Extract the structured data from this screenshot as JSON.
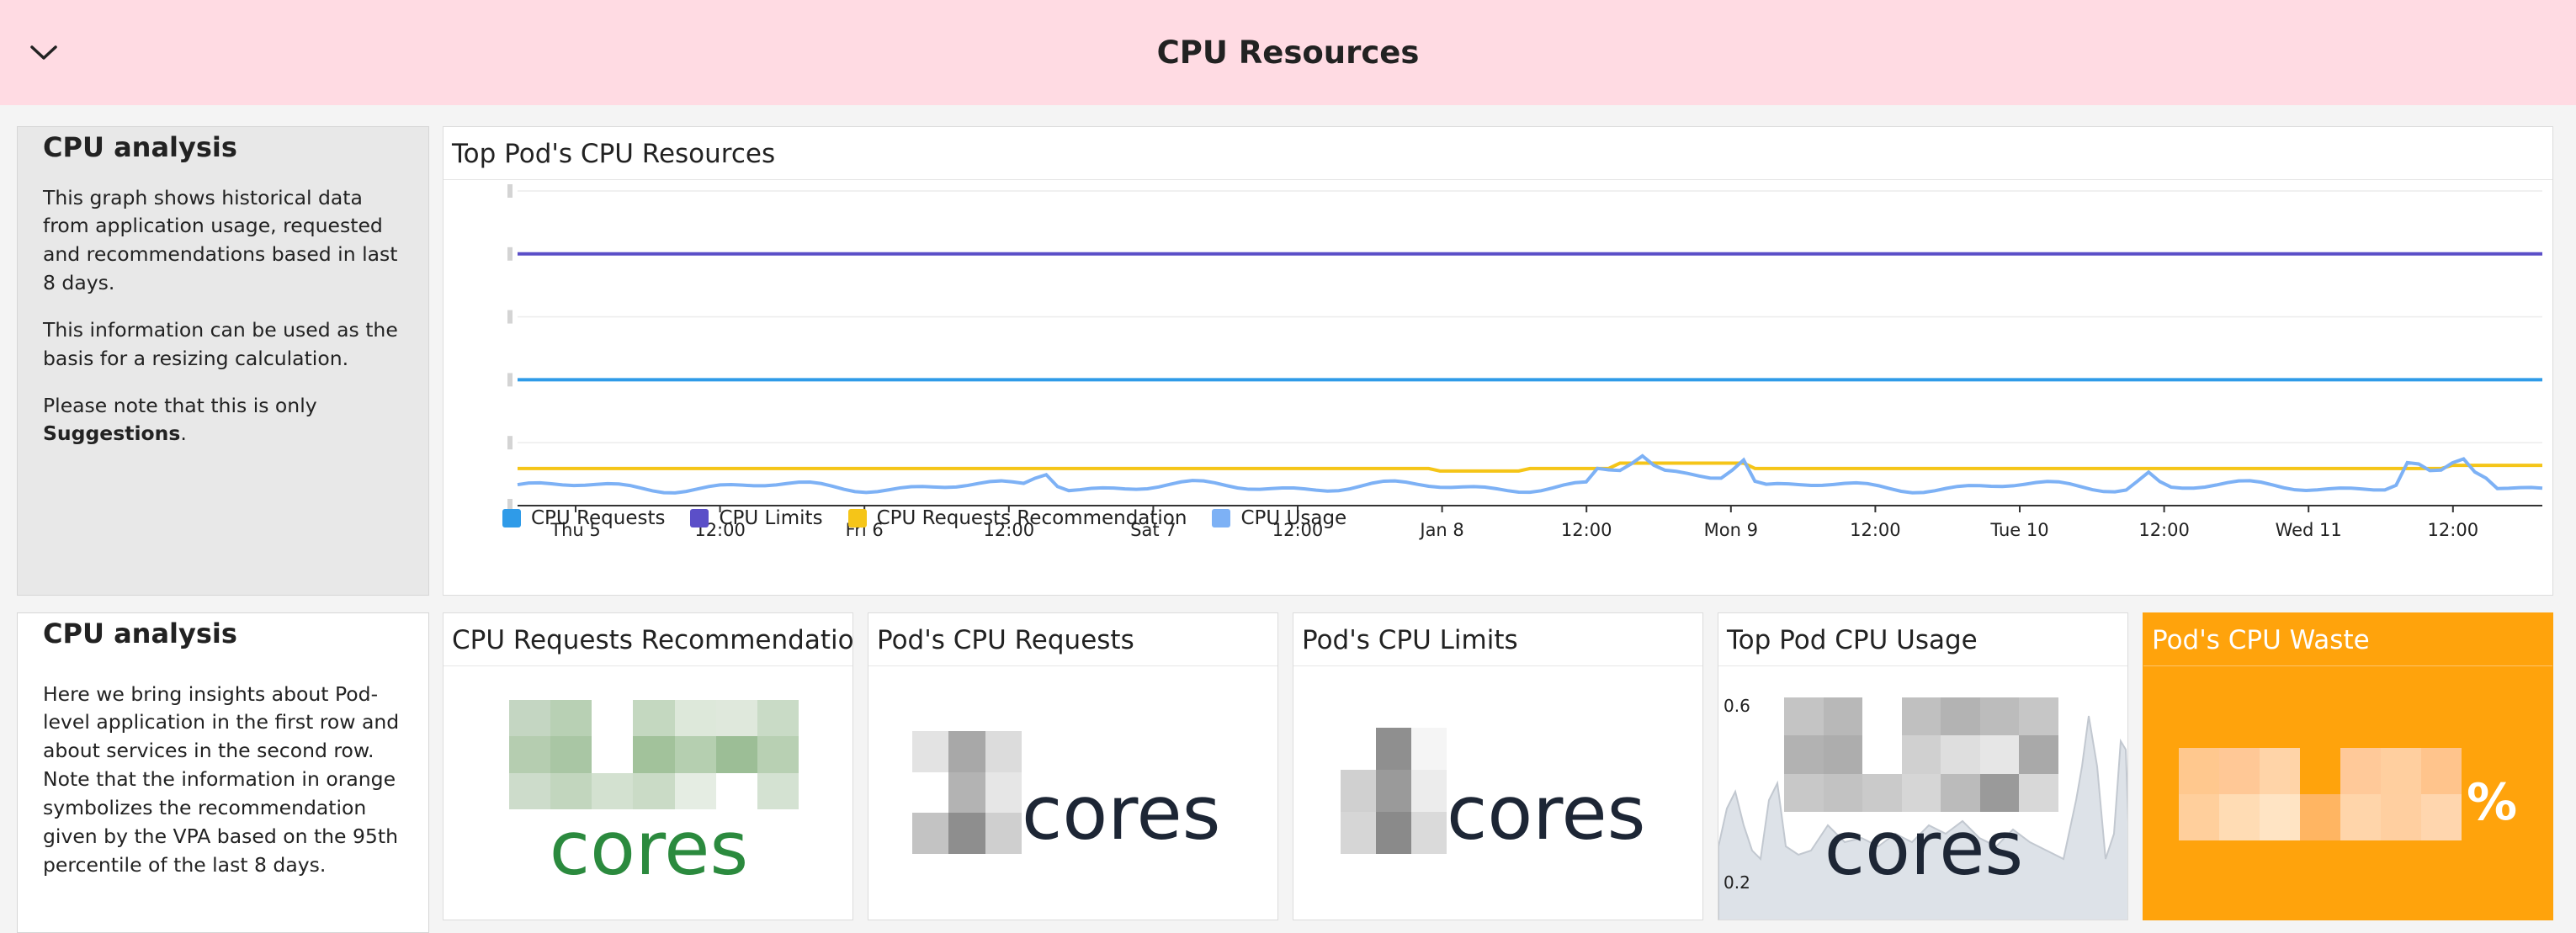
{
  "group": {
    "title": "CPU Resources",
    "toggle_icon": "chevron-down-icon"
  },
  "note_top": {
    "heading": "CPU analysis",
    "p1": "This graph shows historical data from application usage, requested and recommendations based in last 8 days.",
    "p2": "This information can be used as the basis for a resizing calculation.",
    "p3_prefix": "Please note that this is only ",
    "p3_bold": "Suggestions",
    "p3_suffix": "."
  },
  "note_bottom": {
    "heading": "CPU analysis",
    "p1": "Here we bring insights about Pod-level application in the first row and about services in the second row. Note that the information in orange symbolizes the recommendation given by the VPA based on the 95th percentile of the last 8 days."
  },
  "timeseries": {
    "title": "Top Pod's CPU Resources",
    "legend": [
      "CPU Requests",
      "CPU Limits",
      "CPU Requests Recommendation",
      "CPU Usage"
    ]
  },
  "chart_data": {
    "type": "line",
    "x_ticks": [
      "Thu 5",
      "12:00",
      "Fri 6",
      "12:00",
      "Sat 7",
      "12:00",
      "Jan 8",
      "12:00",
      "Mon 9",
      "12:00",
      "Tue 10",
      "12:00",
      "Wed 11",
      "12:00"
    ],
    "y_tick_count": 6,
    "series": [
      {
        "name": "CPU Limits",
        "color": "#5b4fc8",
        "level": 0.8
      },
      {
        "name": "CPU Requests",
        "color": "#2f9be8",
        "level": 0.4
      },
      {
        "name": "CPU Requests Recommendation",
        "color": "#f5c518"
      },
      {
        "name": "CPU Usage",
        "color": "#7db1f5"
      }
    ]
  },
  "stats": {
    "rec": {
      "title": "CPU Requests Recommendation",
      "unit": "cores",
      "color": "#2b8a3e"
    },
    "req": {
      "title": "Pod's CPU Requests",
      "unit": "cores"
    },
    "lim": {
      "title": "Pod's CPU Limits",
      "unit": "cores"
    },
    "usage": {
      "title": "Top Pod CPU Usage",
      "unit": "cores",
      "y_top": "0.6",
      "y_bottom": "0.2"
    },
    "waste": {
      "title": "Pod's CPU Waste",
      "unit": "%"
    }
  }
}
